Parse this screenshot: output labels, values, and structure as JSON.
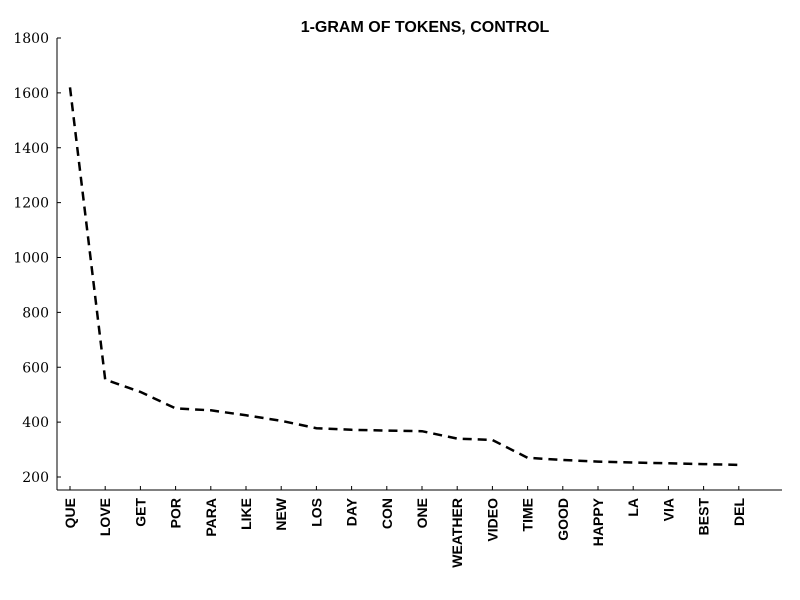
{
  "chart_data": {
    "type": "line",
    "title": "1-GRAM OF TOKENS, CONTROL",
    "xlabel": "",
    "ylabel": "",
    "categories": [
      "QUE",
      "LOVE",
      "GET",
      "POR",
      "PARA",
      "LIKE",
      "NEW",
      "LOS",
      "DAY",
      "CON",
      "ONE",
      "WEATHER",
      "VIDEO",
      "TIME",
      "GOOD",
      "HAPPY",
      "LA",
      "VIA",
      "BEST",
      "DEL"
    ],
    "values": [
      1620,
      555,
      510,
      450,
      443,
      425,
      405,
      378,
      372,
      369,
      367,
      340,
      335,
      270,
      262,
      256,
      253,
      250,
      247,
      244
    ],
    "yticks": [
      200,
      400,
      600,
      800,
      1000,
      1200,
      1400,
      1600,
      1800
    ],
    "ylim": [
      180,
      1800
    ],
    "line_style": "dashed",
    "grid": false,
    "color": "#000000"
  }
}
